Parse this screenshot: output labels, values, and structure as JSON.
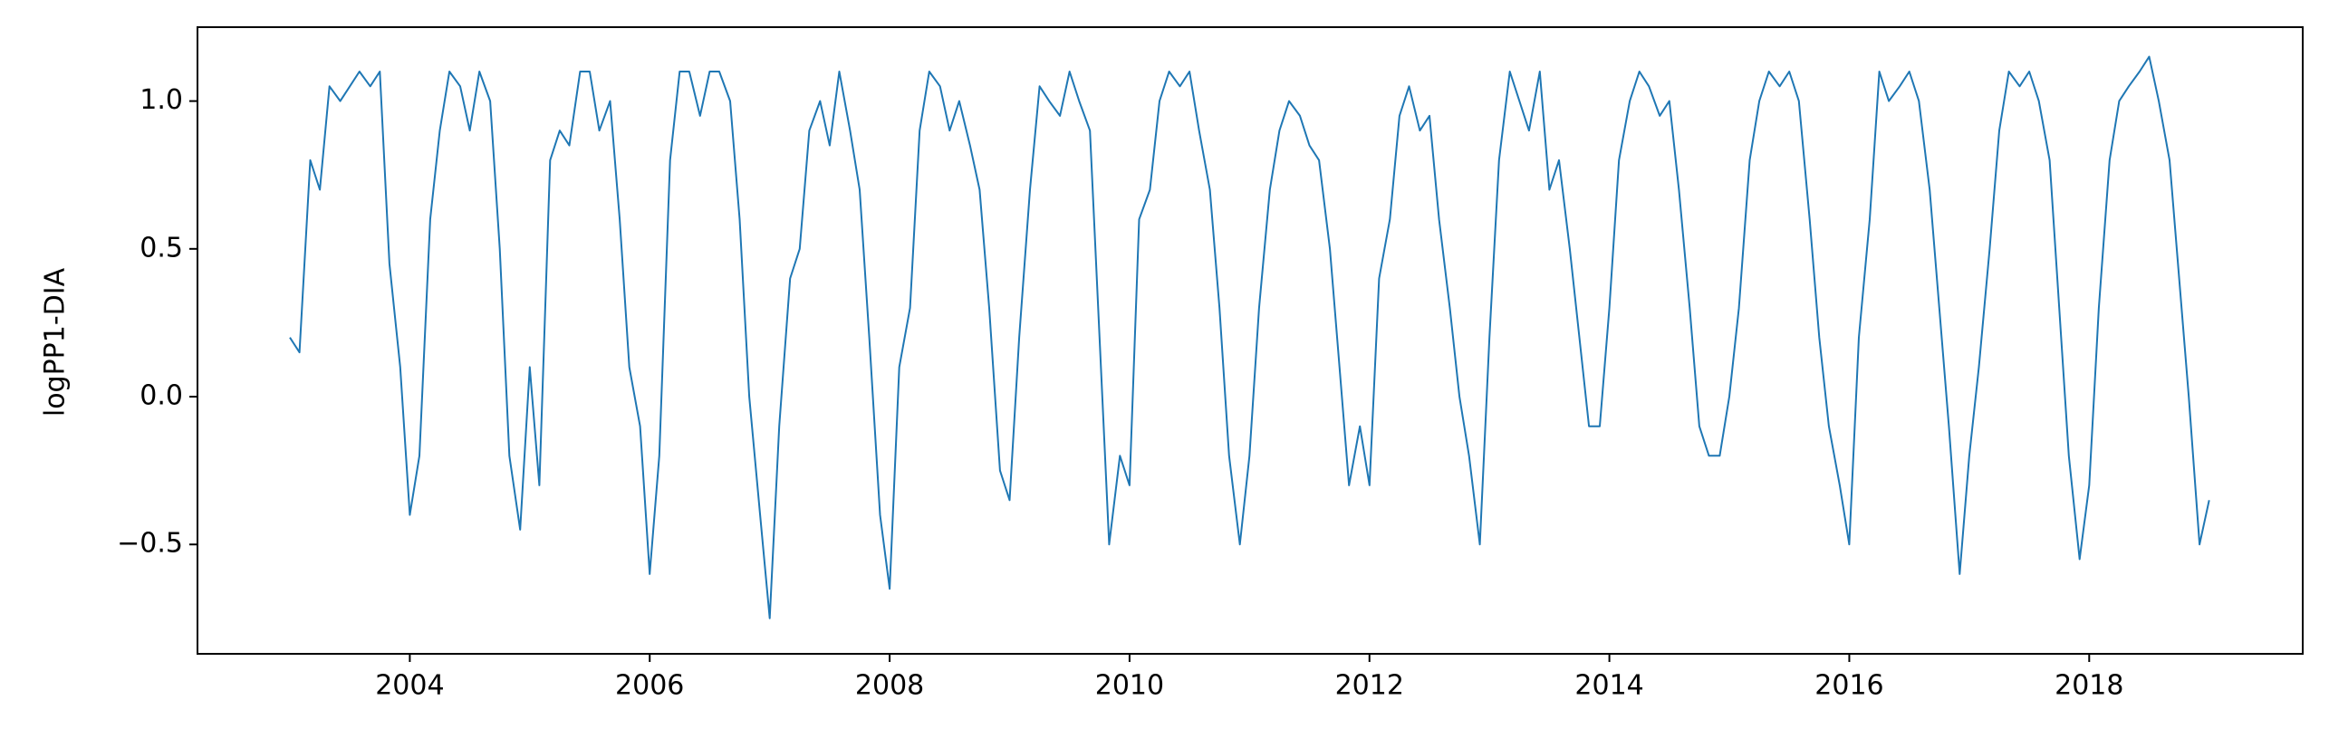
{
  "chart_data": {
    "type": "line",
    "y_label": "logPP1-DIA",
    "color": "#1f77b4",
    "x": [
      2003.0,
      2003.08,
      2003.17,
      2003.25,
      2003.33,
      2003.42,
      2003.5,
      2003.58,
      2003.67,
      2003.75,
      2003.83,
      2003.92,
      2004.0,
      2004.08,
      2004.17,
      2004.25,
      2004.33,
      2004.42,
      2004.5,
      2004.58,
      2004.67,
      2004.75,
      2004.83,
      2004.92,
      2005.0,
      2005.08,
      2005.17,
      2005.25,
      2005.33,
      2005.42,
      2005.5,
      2005.58,
      2005.67,
      2005.75,
      2005.83,
      2005.92,
      2006.0,
      2006.08,
      2006.17,
      2006.25,
      2006.33,
      2006.42,
      2006.5,
      2006.58,
      2006.67,
      2006.75,
      2006.83,
      2006.92,
      2007.0,
      2007.08,
      2007.17,
      2007.25,
      2007.33,
      2007.42,
      2007.5,
      2007.58,
      2007.67,
      2007.75,
      2007.83,
      2007.92,
      2008.0,
      2008.08,
      2008.17,
      2008.25,
      2008.33,
      2008.42,
      2008.5,
      2008.58,
      2008.67,
      2008.75,
      2008.83,
      2008.92,
      2009.0,
      2009.08,
      2009.17,
      2009.25,
      2009.33,
      2009.42,
      2009.5,
      2009.58,
      2009.67,
      2009.75,
      2009.83,
      2009.92,
      2010.0,
      2010.08,
      2010.17,
      2010.25,
      2010.33,
      2010.42,
      2010.5,
      2010.58,
      2010.67,
      2010.75,
      2010.83,
      2010.92,
      2011.0,
      2011.08,
      2011.17,
      2011.25,
      2011.33,
      2011.42,
      2011.5,
      2011.58,
      2011.67,
      2011.75,
      2011.83,
      2011.92,
      2012.0,
      2012.08,
      2012.17,
      2012.25,
      2012.33,
      2012.42,
      2012.5,
      2012.58,
      2012.67,
      2012.75,
      2012.83,
      2012.92,
      2013.0,
      2013.08,
      2013.17,
      2013.25,
      2013.33,
      2013.42,
      2013.5,
      2013.58,
      2013.67,
      2013.75,
      2013.83,
      2013.92,
      2014.0,
      2014.08,
      2014.17,
      2014.25,
      2014.33,
      2014.42,
      2014.5,
      2014.58,
      2014.67,
      2014.75,
      2014.83,
      2014.92,
      2015.0,
      2015.08,
      2015.17,
      2015.25,
      2015.33,
      2015.42,
      2015.5,
      2015.58,
      2015.67,
      2015.75,
      2015.83,
      2015.92,
      2016.0,
      2016.08,
      2016.17,
      2016.25,
      2016.33,
      2016.42,
      2016.5,
      2016.58,
      2016.67,
      2016.75,
      2016.83,
      2016.92,
      2017.0,
      2017.08,
      2017.17,
      2017.25,
      2017.33,
      2017.42,
      2017.5,
      2017.58,
      2017.67,
      2017.75,
      2017.83,
      2017.92,
      2018.0,
      2018.08,
      2018.17,
      2018.25,
      2018.33,
      2018.42,
      2018.5,
      2018.58,
      2018.67,
      2018.75,
      2018.83,
      2018.92,
      2019.0
    ],
    "values": [
      0.2,
      0.15,
      0.8,
      0.7,
      1.05,
      1.0,
      1.05,
      1.1,
      1.05,
      1.1,
      0.45,
      0.1,
      -0.4,
      -0.2,
      0.6,
      0.9,
      1.1,
      1.05,
      0.9,
      1.1,
      1.0,
      0.5,
      -0.2,
      -0.45,
      0.1,
      -0.3,
      0.8,
      0.9,
      0.85,
      1.1,
      1.1,
      0.9,
      1.0,
      0.6,
      0.1,
      -0.1,
      -0.6,
      -0.2,
      0.8,
      1.1,
      1.1,
      0.95,
      1.1,
      1.1,
      1.0,
      0.6,
      0.0,
      -0.4,
      -0.75,
      -0.1,
      0.4,
      0.5,
      0.9,
      1.0,
      0.85,
      1.1,
      0.9,
      0.7,
      0.2,
      -0.4,
      -0.65,
      0.1,
      0.3,
      0.9,
      1.1,
      1.05,
      0.9,
      1.0,
      0.85,
      0.7,
      0.3,
      -0.25,
      -0.35,
      0.2,
      0.7,
      1.05,
      1.0,
      0.95,
      1.1,
      1.0,
      0.9,
      0.2,
      -0.5,
      -0.2,
      -0.3,
      0.6,
      0.7,
      1.0,
      1.1,
      1.05,
      1.1,
      0.9,
      0.7,
      0.3,
      -0.2,
      -0.5,
      -0.2,
      0.3,
      0.7,
      0.9,
      1.0,
      0.95,
      0.85,
      0.8,
      0.5,
      0.1,
      -0.3,
      -0.1,
      -0.3,
      0.4,
      0.6,
      0.95,
      1.05,
      0.9,
      0.95,
      0.6,
      0.3,
      0.0,
      -0.2,
      -0.5,
      0.2,
      0.8,
      1.1,
      1.0,
      0.9,
      1.1,
      0.7,
      0.8,
      0.5,
      0.2,
      -0.1,
      -0.1,
      0.3,
      0.8,
      1.0,
      1.1,
      1.05,
      0.95,
      1.0,
      0.7,
      0.3,
      -0.1,
      -0.2,
      -0.2,
      0.0,
      0.3,
      0.8,
      1.0,
      1.1,
      1.05,
      1.1,
      1.0,
      0.6,
      0.2,
      -0.1,
      -0.3,
      -0.5,
      0.2,
      0.6,
      1.1,
      1.0,
      1.05,
      1.1,
      1.0,
      0.7,
      0.3,
      -0.1,
      -0.6,
      -0.2,
      0.1,
      0.5,
      0.9,
      1.1,
      1.05,
      1.1,
      1.0,
      0.8,
      0.3,
      -0.2,
      -0.55,
      -0.3,
      0.3,
      0.8,
      1.0,
      1.05,
      1.1,
      1.15,
      1.0,
      0.8,
      0.4,
      0.0,
      -0.5,
      -0.35
    ],
    "xlim": [
      2002.23,
      2019.78
    ],
    "ylim": [
      -0.87,
      1.25
    ],
    "xticks": [
      2004,
      2006,
      2008,
      2010,
      2012,
      2014,
      2016,
      2018
    ],
    "yticks": [
      {
        "value": 1.0,
        "label": "1.0"
      },
      {
        "value": 0.5,
        "label": "0.5"
      },
      {
        "value": 0.0,
        "label": "0.0"
      },
      {
        "value": -0.5,
        "label": "−0.5"
      }
    ]
  }
}
